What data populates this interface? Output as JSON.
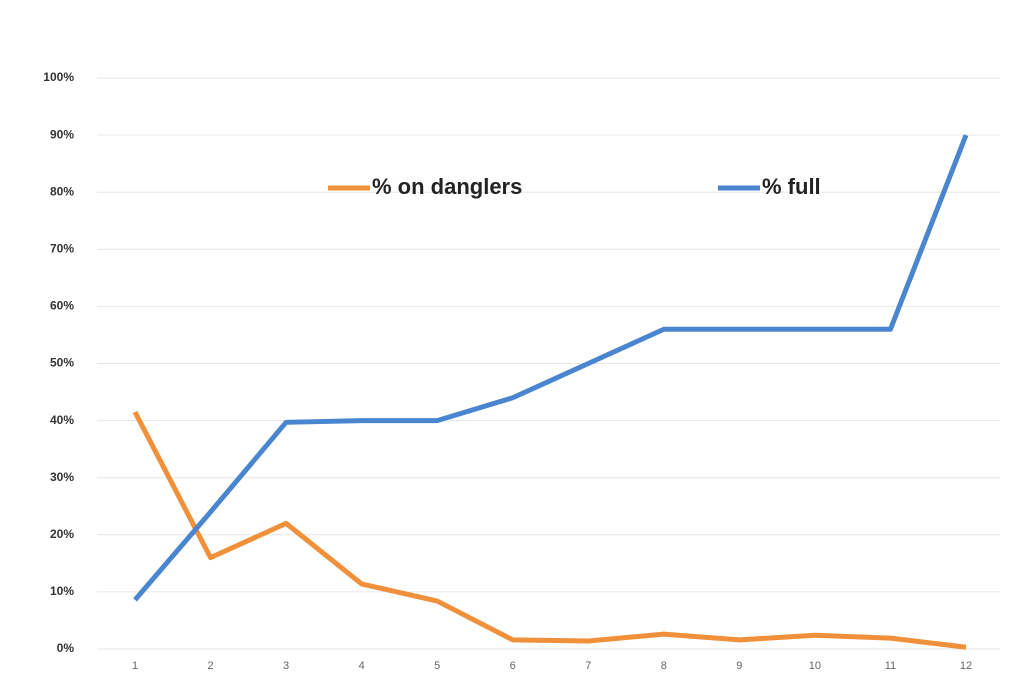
{
  "chart_data": {
    "type": "line",
    "categories": [
      "1",
      "2",
      "3",
      "4",
      "5",
      "6",
      "7",
      "8",
      "9",
      "10",
      "11",
      "12"
    ],
    "series": [
      {
        "name": "% on danglers",
        "color": "#f0903a",
        "values": [
          41.5,
          16,
          22,
          11.4,
          8.4,
          1.6,
          1.4,
          2.6,
          1.6,
          2.4,
          1.9,
          0.3
        ]
      },
      {
        "name": "% full",
        "color": "#4a86d0",
        "values": [
          8.6,
          24,
          39.7,
          40,
          40,
          44,
          50,
          56,
          56,
          56,
          56,
          90
        ]
      }
    ],
    "ylim": [
      0,
      100
    ],
    "yticks": [
      {
        "value": 0,
        "label": "0%"
      },
      {
        "value": 10,
        "label": "10%"
      },
      {
        "value": 20,
        "label": "20%"
      },
      {
        "value": 30,
        "label": "30%"
      },
      {
        "value": 40,
        "label": "40%"
      },
      {
        "value": 50,
        "label": "50%"
      },
      {
        "value": 60,
        "label": "60%"
      },
      {
        "value": 70,
        "label": "70%"
      },
      {
        "value": 80,
        "label": "80%"
      },
      {
        "value": 90,
        "label": "90%"
      },
      {
        "value": 100,
        "label": "100%"
      }
    ],
    "grid": true
  }
}
